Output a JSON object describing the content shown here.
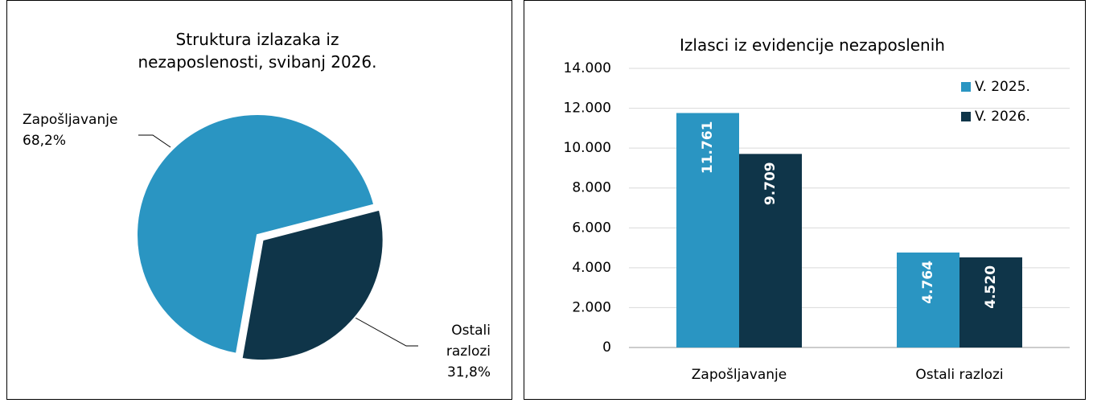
{
  "chart_data": [
    {
      "type": "pie",
      "title": "Struktura izlazaka iz nezaposlenosti, svibanj 2026.",
      "categories": [
        "Zapošljavanje",
        "Ostali razlozi"
      ],
      "values": [
        68.2,
        31.8
      ],
      "value_labels": [
        "68,2%",
        "31,8%"
      ],
      "colors": [
        "#2a95c2",
        "#0f3549"
      ]
    },
    {
      "type": "bar",
      "title": "Izlasci iz evidencije nezaposlenih",
      "categories": [
        "Zapošljavanje",
        "Ostali razlozi"
      ],
      "series": [
        {
          "name": "V. 2025.",
          "color": "#2a95c2",
          "values": [
            11761,
            4764
          ],
          "value_labels": [
            "11.761",
            "4.764"
          ]
        },
        {
          "name": "V. 2026.",
          "color": "#0f3549",
          "values": [
            9709,
            4520
          ],
          "value_labels": [
            "9.709",
            "4.520"
          ]
        }
      ],
      "ylim": [
        0,
        14000
      ],
      "yticks": [
        0,
        {
          "value": 2000,
          "label": "2.000"
        },
        {
          "value": 4000,
          "label": "4.000"
        },
        {
          "value": 6000,
          "label": "6.000"
        },
        {
          "value": 8000,
          "label": "8.000"
        },
        {
          "value": 10000,
          "label": "10.000"
        },
        {
          "value": 12000,
          "label": "12.000"
        },
        {
          "value": 14000,
          "label": "14.000"
        }
      ],
      "grid": true,
      "legend": "top-right"
    }
  ]
}
